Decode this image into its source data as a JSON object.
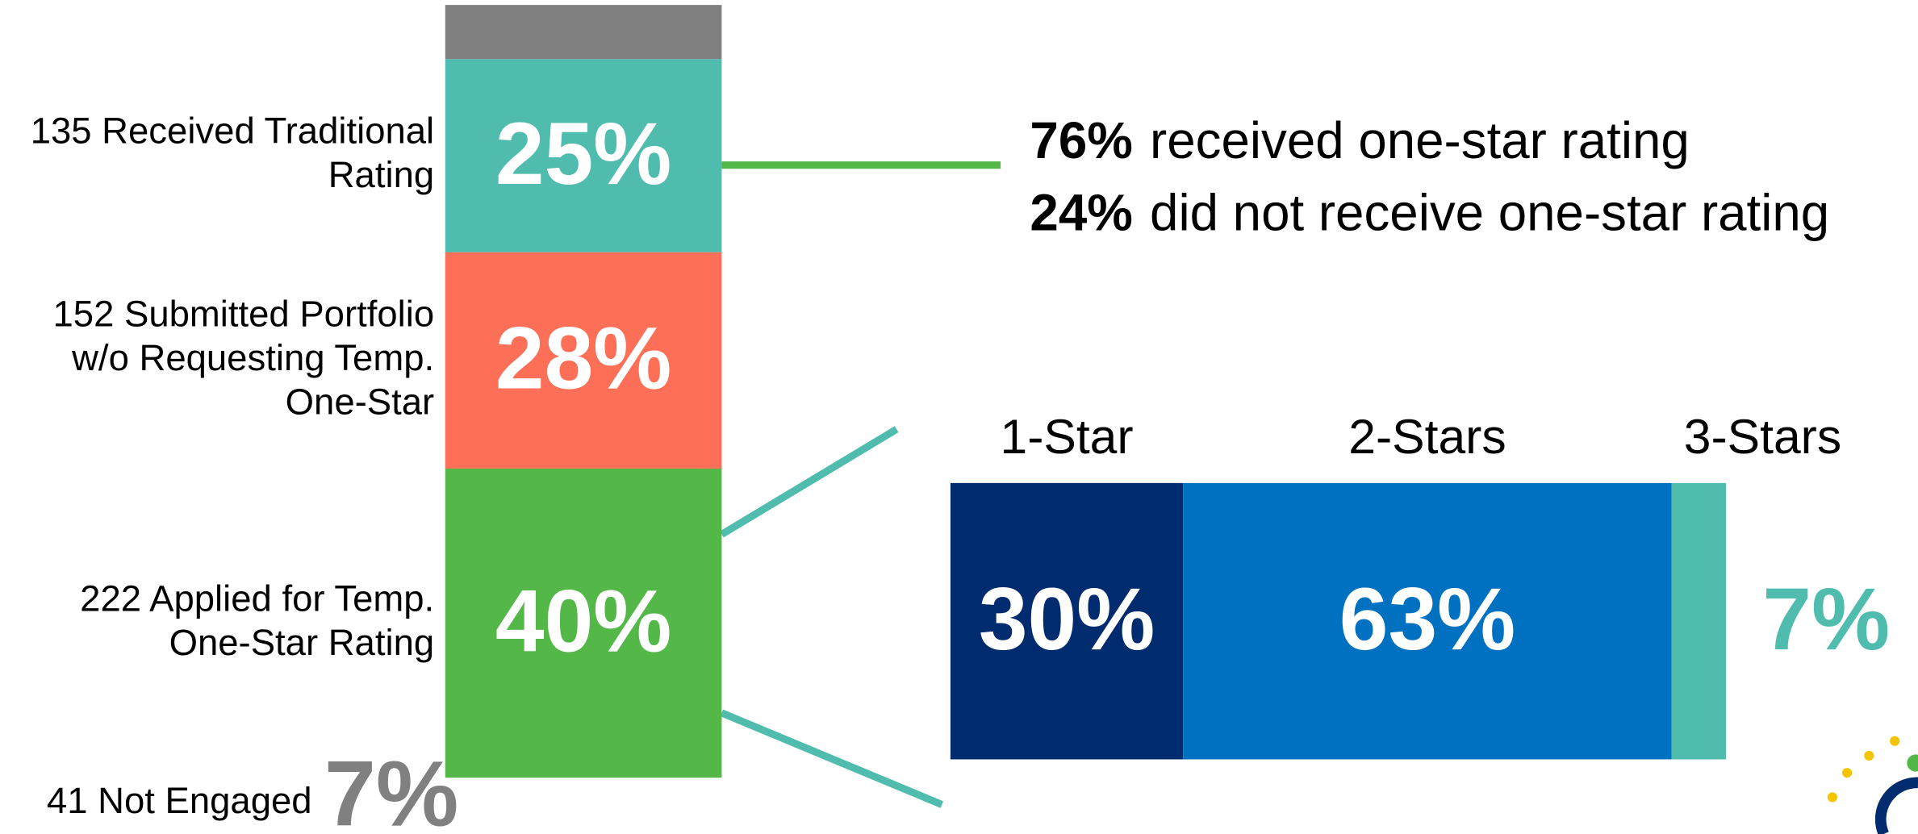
{
  "chart_data": [
    {
      "type": "stacked-column",
      "categories": [
        "222 Applied for Temp.\nOne-Star Rating",
        "152 Submitted Portfolio\nw/o Requesting Temp.\nOne-Star",
        "135 Received Traditional\nRating",
        "41 Not Engaged"
      ],
      "values": [
        40,
        28,
        25,
        7
      ],
      "value_labels": [
        "40%",
        "28%",
        "25%",
        "7%"
      ],
      "colors": [
        "#53b848",
        "#fd6f56",
        "#4fbcad",
        "#808080"
      ]
    },
    {
      "type": "stacked-bar",
      "categories": [
        "1-Star",
        "2-Stars",
        "3-Stars"
      ],
      "values": [
        30,
        63,
        7
      ],
      "value_labels": [
        "30%",
        "63%",
        "7%"
      ],
      "colors": [
        "#002b6e",
        "#0070c0",
        "#4fbcad"
      ]
    }
  ],
  "annotations": [
    {
      "value": 76,
      "label": "76%",
      "text": "received one-star rating"
    },
    {
      "value": 24,
      "label": "24%",
      "text": "did not receive one-star rating"
    }
  ]
}
